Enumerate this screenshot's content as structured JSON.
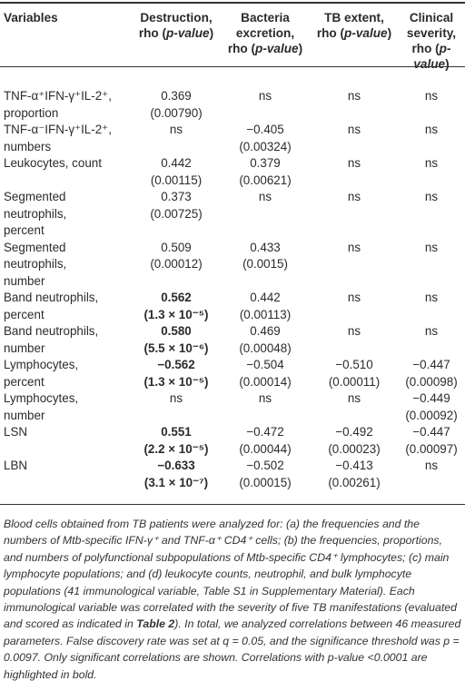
{
  "table": {
    "headers": [
      [
        "Variables",
        ""
      ],
      [
        "Destruction,",
        "rho (",
        "p-value",
        ")"
      ],
      [
        "Bacteria",
        "excretion,",
        "rho (",
        "p-value",
        ")"
      ],
      [
        "TB extent,",
        "rho (",
        "p-value",
        ")"
      ],
      [
        "Clinical",
        "severity,",
        "rho (",
        "p-value",
        ")"
      ]
    ],
    "rows": [
      {
        "variable": [
          "TNF-α⁺IFN-γ⁺IL-2⁺,",
          "proportion"
        ],
        "cells": [
          [
            "0.369",
            "(0.00790)"
          ],
          [
            "ns",
            ""
          ],
          [
            "ns",
            ""
          ],
          [
            "ns",
            ""
          ]
        ]
      },
      {
        "variable": [
          "TNF-α⁻IFN-γ⁺IL-2⁺,",
          "numbers"
        ],
        "cells": [
          [
            "ns",
            ""
          ],
          [
            "−0.405",
            "(0.00324)"
          ],
          [
            "ns",
            ""
          ],
          [
            "ns",
            ""
          ]
        ]
      },
      {
        "variable": [
          "Leukocytes, count",
          ""
        ],
        "cells": [
          [
            "0.442",
            "(0.00115)"
          ],
          [
            "0.379",
            "(0.00621)"
          ],
          [
            "ns",
            ""
          ],
          [
            "ns",
            ""
          ]
        ]
      },
      {
        "variable": [
          "Segmented",
          "neutrophils,",
          "percent"
        ],
        "cells": [
          [
            "0.373",
            "(0.00725)"
          ],
          [
            "ns",
            ""
          ],
          [
            "ns",
            ""
          ],
          [
            "ns",
            ""
          ]
        ]
      },
      {
        "variable": [
          "Segmented",
          "neutrophils,",
          "number"
        ],
        "cells": [
          [
            "0.509",
            "(0.00012)"
          ],
          [
            "0.433",
            "(0.0015)"
          ],
          [
            "ns",
            ""
          ],
          [
            "ns",
            ""
          ]
        ]
      },
      {
        "variable": [
          "Band neutrophils,",
          "percent"
        ],
        "cells": [
          [
            "0.562",
            "(1.3 × 10⁻⁵)"
          ],
          [
            "0.442",
            "(0.00113)"
          ],
          [
            "ns",
            ""
          ],
          [
            "ns",
            ""
          ]
        ],
        "bold_first": true
      },
      {
        "variable": [
          "Band neutrophils,",
          "number"
        ],
        "cells": [
          [
            "0.580",
            "(5.5 × 10⁻⁶)"
          ],
          [
            "0.469",
            "(0.00048)"
          ],
          [
            "ns",
            ""
          ],
          [
            "ns",
            ""
          ]
        ],
        "bold_first": true
      },
      {
        "variable": [
          "Lymphocytes,",
          "percent"
        ],
        "cells": [
          [
            "−0.562",
            "(1.3 × 10⁻⁵)"
          ],
          [
            "−0.504",
            "(0.00014)"
          ],
          [
            "−0.510",
            "(0.00011)"
          ],
          [
            "−0.447",
            "(0.00098)"
          ]
        ],
        "bold_first": true
      },
      {
        "variable": [
          "Lymphocytes,",
          "number"
        ],
        "cells": [
          [
            "ns",
            ""
          ],
          [
            "ns",
            ""
          ],
          [
            "ns",
            ""
          ],
          [
            "−0.449",
            "(0.00092)"
          ]
        ]
      },
      {
        "variable": [
          "LSN",
          ""
        ],
        "cells": [
          [
            "0.551",
            "(2.2 × 10⁻⁵)"
          ],
          [
            "−0.472",
            "(0.00044)"
          ],
          [
            "−0.492",
            "(0.00023)"
          ],
          [
            "−0.447",
            "(0.00097)"
          ]
        ],
        "bold_first": true
      },
      {
        "variable": [
          "LBN",
          ""
        ],
        "cells": [
          [
            "−0.633",
            "(3.1 × 10⁻⁷)"
          ],
          [
            "−0.502",
            "(0.00015)"
          ],
          [
            "−0.413",
            "(0.00261)"
          ],
          [
            "ns",
            ""
          ]
        ],
        "bold_first": true
      }
    ]
  },
  "footnote": {
    "part1": "Blood cells obtained from TB patients were analyzed for: (a) the frequencies and the numbers of Mtb-specific IFN-γ⁺ and TNF-α⁺ CD4⁺ cells; (b) the frequencies, proportions, and numbers of polyfunctional subpopulations of Mtb-specific CD4⁺ lymphocytes; (c) main lymphocyte populations; and (d) leukocyte counts, neutrophil, and bulk lymphocyte populations (41 immunological variable, Table S1 in Supplementary Material). Each immunological variable was correlated with the severity of five TB manifestations (evaluated and scored as indicated in ",
    "table_ref": "Table 2",
    "part2": "). In total, we analyzed correlations between 46 measured parameters. False discovery rate was set at q = 0.05, and the significance threshold was p = 0.0097. Only significant correlations are shown. Correlations with p-value <0.0001 are highlighted in bold."
  }
}
